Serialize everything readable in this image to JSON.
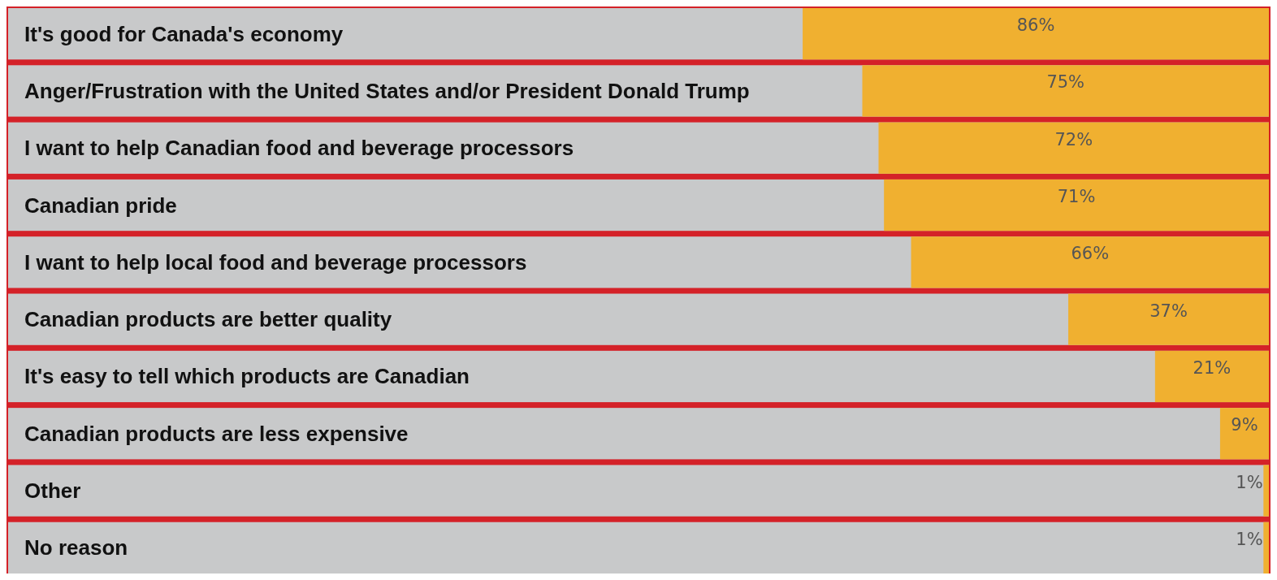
{
  "chart_data": {
    "type": "bar",
    "orientation": "horizontal",
    "categories": [
      "It's good for Canada's economy",
      "Anger/Frustration with the United States and/or President Donald Trump",
      "I want to help Canadian food and beverage processors",
      "Canadian pride",
      "I want to help local food and beverage processors",
      "Canadian products are better quality",
      "It's easy to tell which products are Canadian",
      "Canadian products are less expensive",
      "Other",
      "No reason"
    ],
    "values": [
      86,
      75,
      72,
      71,
      66,
      37,
      21,
      9,
      1,
      1
    ],
    "value_labels": [
      "86%",
      "75%",
      "72%",
      "71%",
      "66%",
      "37%",
      "21%",
      "9%",
      "1%",
      "1%"
    ],
    "color": "#f0b030",
    "tick_labels": "y"
  }
}
